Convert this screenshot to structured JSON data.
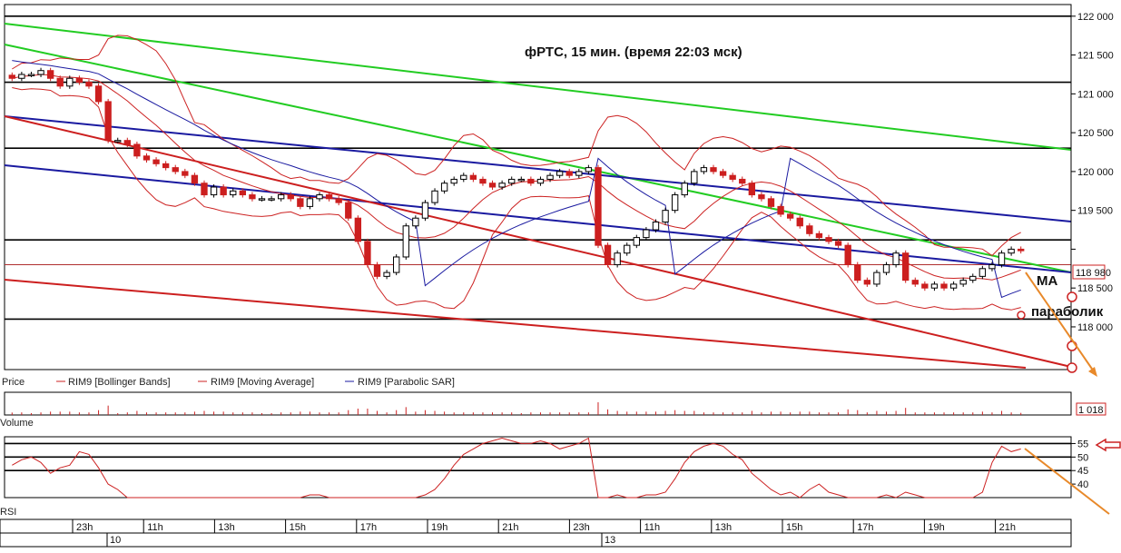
{
  "chart_data": {
    "type": "candlestick",
    "title": "фРТС,  15 мин. (время 22:03 мск)",
    "price_axis": {
      "ticks": [
        122000,
        121500,
        121000,
        120500,
        120000,
        119500,
        119000,
        118500,
        118000
      ],
      "tick_labels": [
        "122 000",
        "121 500",
        "121 000",
        "120 500",
        "120 000",
        "119 500",
        "",
        "118 500",
        "118 000"
      ],
      "ylim": [
        117450,
        122150
      ],
      "last_price_label": "118 980",
      "last_price": 118980
    },
    "time_axis": {
      "labels": [
        "23h",
        "11h",
        "13h",
        "15h",
        "17h",
        "19h",
        "21h",
        "23h",
        "11h",
        "13h",
        "15h",
        "17h",
        "19h",
        "21h"
      ],
      "day_labels": [
        "10",
        "13"
      ]
    },
    "legend": [
      {
        "name": "Price",
        "color": "#000000"
      },
      {
        "name": "RIM9 [Bollinger Bands]",
        "color": "#cc2222"
      },
      {
        "name": "RIM9 [Moving Average]",
        "color": "#cc2222"
      },
      {
        "name": "RIM9 [Parabolic SAR]",
        "color": "#1a1aa0"
      }
    ],
    "horizontal_levels": [
      122000,
      121150,
      120300,
      119120,
      118100
    ],
    "moving_average_level": 118800,
    "candles_close": [
      121200,
      121250,
      121250,
      121300,
      121200,
      121100,
      121200,
      121150,
      121100,
      120900,
      120400,
      120400,
      120350,
      120200,
      120150,
      120100,
      120050,
      120000,
      119950,
      119850,
      119700,
      119800,
      119700,
      119750,
      119700,
      119650,
      119650,
      119650,
      119700,
      119650,
      119550,
      119650,
      119700,
      119650,
      119600,
      119400,
      119100,
      118800,
      118650,
      118700,
      118900,
      119300,
      119400,
      119600,
      119750,
      119850,
      119900,
      119950,
      119900,
      119850,
      119800,
      119850,
      119900,
      119900,
      119850,
      119900,
      119950,
      120000,
      119950,
      120000,
      120050,
      119050,
      118800,
      118950,
      119050,
      119150,
      119250,
      119350,
      119500,
      119700,
      119850,
      120000,
      120050,
      120000,
      119950,
      119900,
      119850,
      119700,
      119650,
      119550,
      119450,
      119400,
      119300,
      119200,
      119150,
      119100,
      119050,
      118800,
      118600,
      118550,
      118700,
      118800,
      118950,
      118600,
      118550,
      118500,
      118550,
      118500,
      118550,
      118600,
      118650,
      118750,
      118800,
      118950,
      119000,
      118980
    ],
    "volume_axis": {
      "label": "Volume",
      "last_value_label": "1 018"
    },
    "rsi_axis": {
      "label": "RSI",
      "ticks": [
        55,
        50,
        45,
        40
      ],
      "tick_labels": [
        "55",
        "50",
        "45",
        "40"
      ],
      "ylim": [
        35,
        57.5
      ],
      "levels": [
        55,
        50,
        45
      ]
    },
    "rsi_values": [
      47,
      49,
      50,
      48,
      44,
      46,
      47,
      52,
      51,
      46,
      40,
      38,
      35,
      35,
      35,
      35,
      35,
      35,
      35,
      35,
      35,
      35,
      35,
      35,
      35,
      35,
      35,
      35,
      35,
      35,
      35,
      36,
      36,
      35,
      35,
      35,
      35,
      35,
      35,
      35,
      35,
      35,
      35,
      36,
      38,
      42,
      47,
      51,
      53,
      55,
      56,
      57,
      56,
      55,
      55,
      56,
      55,
      53,
      54,
      55,
      57,
      35,
      35,
      36,
      35,
      35,
      36,
      36,
      37,
      42,
      48,
      52,
      54,
      55,
      54,
      51,
      49,
      44,
      41,
      38,
      36,
      37,
      35,
      38,
      40,
      37,
      36,
      35,
      35,
      35,
      35,
      36,
      35,
      37,
      36,
      35,
      35,
      35,
      35,
      35,
      35,
      37,
      48,
      54,
      52,
      53
    ],
    "annotations": [
      {
        "text": "MA"
      },
      {
        "text": "параболик"
      }
    ]
  }
}
